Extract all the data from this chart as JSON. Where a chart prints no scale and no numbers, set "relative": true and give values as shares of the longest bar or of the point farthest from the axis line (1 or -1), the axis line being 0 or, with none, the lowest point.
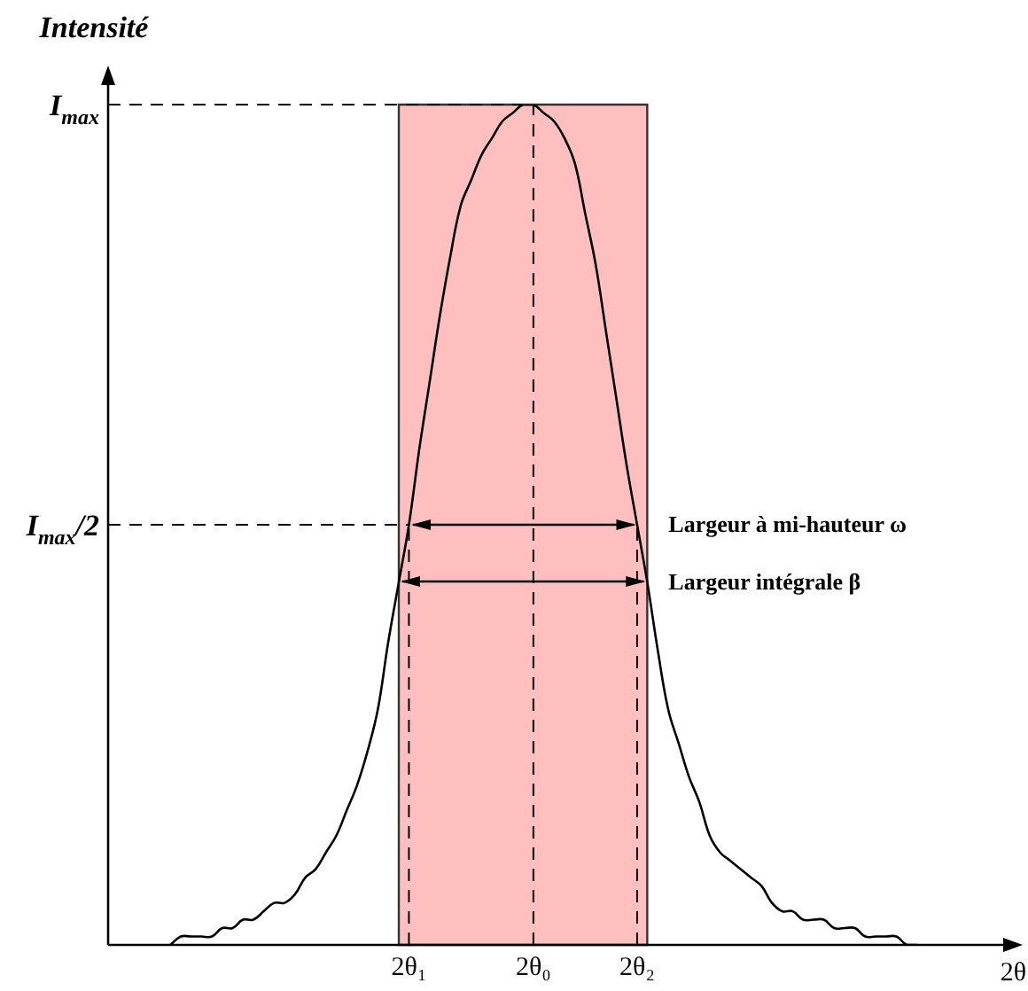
{
  "chart_data": {
    "type": "line",
    "ylabel": "Intensité",
    "xlabel": "2θ",
    "relative": true,
    "marker": "none",
    "line_style": "solid",
    "legend": false,
    "grid": false,
    "categories": [
      null,
      null,
      null,
      null,
      null,
      null,
      null,
      null,
      null,
      null,
      null,
      null,
      null,
      null,
      null,
      null,
      null,
      null,
      null,
      null,
      null,
      null,
      null,
      null,
      null,
      null,
      null,
      null,
      null,
      "2θ₁",
      null,
      null,
      null,
      null,
      null,
      null,
      null,
      null,
      null,
      null,
      null,
      "2θ₀",
      null,
      null,
      null,
      null,
      null,
      null,
      null,
      null,
      null,
      "2θ₂",
      null,
      null,
      null,
      null,
      null,
      null,
      null,
      null,
      null,
      null,
      null,
      null,
      null,
      null,
      null,
      null,
      null,
      null,
      null,
      null,
      null,
      null,
      null,
      null,
      null,
      null,
      null,
      null,
      null,
      null,
      null,
      null,
      null,
      null,
      null,
      null,
      null
    ],
    "series": [
      {
        "color": "#000000",
        "values": [
          null,
          null,
          null,
          null,
          null,
          null,
          0,
          0.01,
          0.01,
          0.01,
          0.01,
          0.02,
          0.02,
          0.03,
          0.03,
          0.04,
          0.05,
          0.05,
          0.06,
          0.08,
          0.09,
          0.11,
          0.13,
          0.16,
          0.19,
          0.23,
          0.28,
          0.36,
          0.43,
          0.5,
          0.59,
          0.67,
          0.75,
          0.82,
          0.88,
          0.91,
          0.94,
          0.96,
          0.98,
          0.99,
          1,
          1,
          0.99,
          0.98,
          0.96,
          0.93,
          0.87,
          0.81,
          0.73,
          0.65,
          0.57,
          0.5,
          0.43,
          0.35,
          0.28,
          0.24,
          0.2,
          0.17,
          0.13,
          0.11,
          0.1,
          0.09,
          0.08,
          0.07,
          0.05,
          0.04,
          0.04,
          0.03,
          0.03,
          0.03,
          0.02,
          0.02,
          0.02,
          0.01,
          0.01,
          0.01,
          0.01,
          0,
          0,
          null,
          null,
          null,
          null,
          null,
          null,
          null,
          null,
          null,
          null
        ]
      }
    ],
    "ref_lines": [
      {
        "axis": "y",
        "value": 1,
        "label": "I$_{max}$",
        "line_style": "dashed"
      },
      {
        "axis": "y",
        "value": 0.5,
        "label": "I$_{max}$/2",
        "line_style": "dashed"
      },
      {
        "axis": "x",
        "value": "2θ₁",
        "line_style": "dashed"
      },
      {
        "axis": "x",
        "value": "2θ₀",
        "line_style": "dashed"
      },
      {
        "axis": "x",
        "value": "2θ₂",
        "line_style": "dashed"
      }
    ],
    "annotations": [
      "Largeur à mi-hauteur ω",
      "Largeur intégrale β"
    ]
  }
}
